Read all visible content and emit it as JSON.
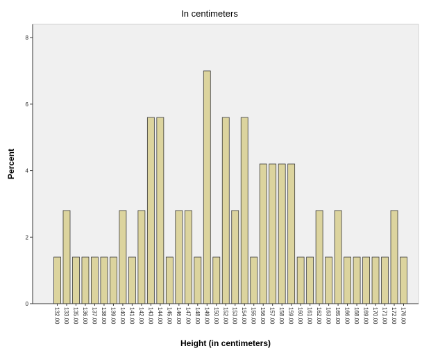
{
  "chart_data": {
    "type": "bar",
    "title": "In centimeters",
    "xlabel": "Height (in centimeters)",
    "ylabel": "Percent",
    "categories": [
      "132.00",
      "133.00",
      "135.00",
      "136.00",
      "137.00",
      "138.00",
      "139.00",
      "140.00",
      "141.00",
      "142.00",
      "143.00",
      "144.00",
      "145.00",
      "146.00",
      "147.00",
      "148.00",
      "149.00",
      "150.00",
      "152.00",
      "153.00",
      "154.00",
      "155.00",
      "156.00",
      "157.00",
      "158.00",
      "159.00",
      "160.00",
      "161.00",
      "162.00",
      "163.00",
      "165.00",
      "166.00",
      "168.00",
      "169.00",
      "170.00",
      "171.00",
      "172.00",
      "176.00"
    ],
    "values": [
      1.4,
      2.8,
      1.4,
      1.4,
      1.4,
      1.4,
      1.4,
      2.8,
      1.4,
      2.8,
      5.6,
      5.6,
      1.4,
      2.8,
      2.8,
      1.4,
      7.0,
      1.4,
      5.6,
      2.8,
      5.6,
      1.4,
      4.2,
      4.2,
      4.2,
      4.2,
      1.4,
      1.4,
      2.8,
      1.4,
      2.8,
      1.4,
      1.4,
      1.4,
      1.4,
      1.4,
      2.8,
      1.4
    ],
    "ylim": [
      0,
      8.4
    ],
    "yticks": [
      0,
      2,
      4,
      6,
      8
    ],
    "grid": false,
    "legend": "none",
    "colors": {
      "bar_fill": "#dcd49e",
      "bar_stroke": "#3a3a3a",
      "plot_bg": "#f0f0f0",
      "axis": "#333333"
    }
  }
}
